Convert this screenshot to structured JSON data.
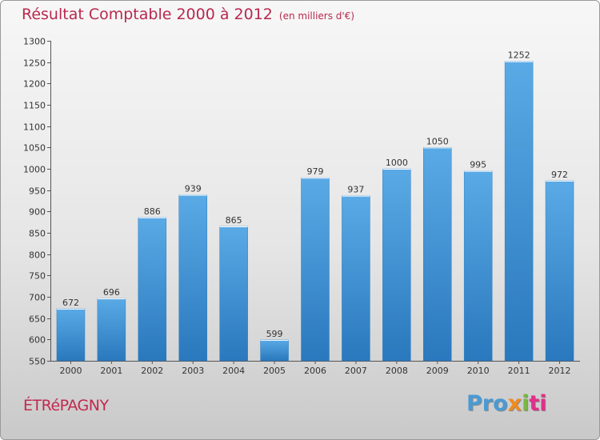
{
  "chart_data": {
    "type": "bar",
    "title": "Résultat Comptable 2000 à 2012",
    "subtitle": "(en milliers d'€)",
    "categories": [
      "2000",
      "2001",
      "2002",
      "2003",
      "2004",
      "2005",
      "2006",
      "2007",
      "2008",
      "2009",
      "2010",
      "2011",
      "2012"
    ],
    "values": [
      672,
      696,
      886,
      939,
      865,
      599,
      979,
      937,
      1000,
      1050,
      995,
      1252,
      972
    ],
    "ylim": [
      550,
      1300
    ],
    "yticks": [
      550,
      600,
      650,
      700,
      750,
      800,
      850,
      900,
      950,
      1000,
      1050,
      1100,
      1150,
      1200,
      1250,
      1300
    ],
    "xlabel": "",
    "ylabel": "",
    "grid": false,
    "bar_color": "#4f9fdb"
  },
  "location": "ÉTRéPAGNY",
  "brand": {
    "p1": "Pro",
    "p2": "x",
    "p3": "i",
    "p4": "ti"
  }
}
